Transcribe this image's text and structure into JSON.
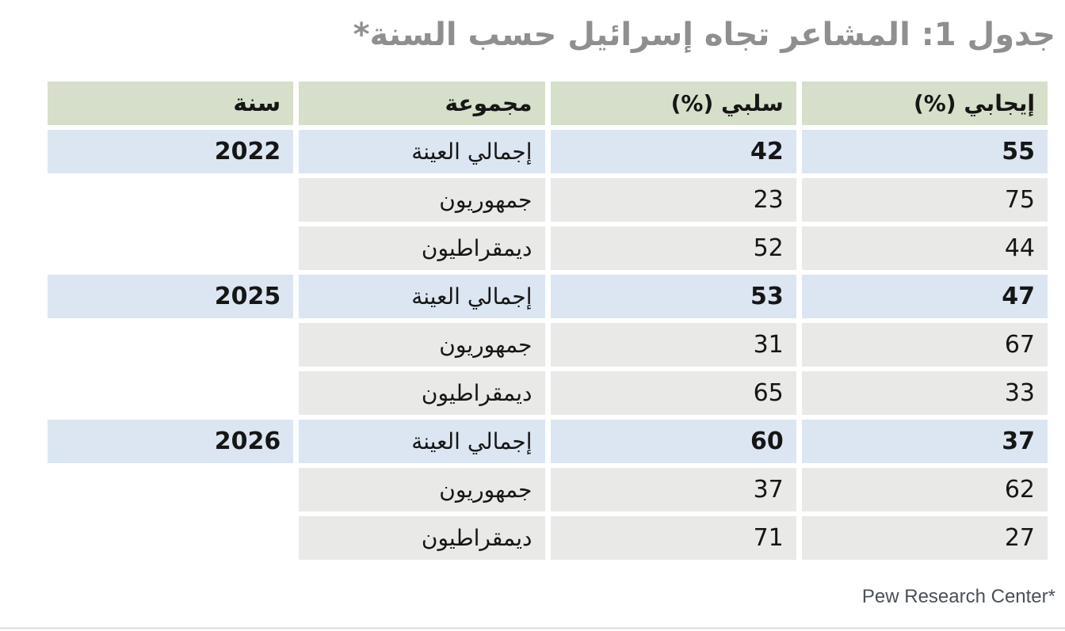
{
  "title": "جدول 1: المشاعر تجاه إسرائيل حسب السنة*",
  "source": "Pew Research Center*",
  "colors": {
    "header_bg": "#d6dfc9",
    "highlight_row_bg": "#dbe6f2",
    "row_bg": "#e9e9e7",
    "title_color": "#8f8f8f",
    "cell_text_color": "#161616",
    "source_color": "#4a5057"
  },
  "chart_data": {
    "type": "table",
    "title": "جدول 1: المشاعر تجاه إسرائيل حسب السنة*",
    "layout": "rtl",
    "columns_right_to_left": [
      "إيجابي (%)",
      "سلبي (%)",
      "مجموعة",
      "سنة"
    ],
    "columns": [
      "إيجابي (%)",
      "سلبي (%)",
      "مجموعة",
      "سنة"
    ],
    "rows": [
      {
        "year": "2022",
        "group": "إجمالي العينة",
        "negative": "42",
        "positive": "55",
        "highlight": true
      },
      {
        "year": "",
        "group": "جمهوريون",
        "negative": "23",
        "positive": "75",
        "highlight": false
      },
      {
        "year": "",
        "group": "ديمقراطيون",
        "negative": "52",
        "positive": "44",
        "highlight": false
      },
      {
        "year": "2025",
        "group": "إجمالي العينة",
        "negative": "53",
        "positive": "47",
        "highlight": true
      },
      {
        "year": "",
        "group": "جمهوريون",
        "negative": "31",
        "positive": "67",
        "highlight": false
      },
      {
        "year": "",
        "group": "ديمقراطيون",
        "negative": "65",
        "positive": "33",
        "highlight": false
      },
      {
        "year": "2026",
        "group": "إجمالي العينة",
        "negative": "60",
        "positive": "37",
        "highlight": true
      },
      {
        "year": "",
        "group": "جمهوريون",
        "negative": "37",
        "positive": "62",
        "highlight": false
      },
      {
        "year": "",
        "group": "ديمقراطيون",
        "negative": "71",
        "positive": "27",
        "highlight": false
      }
    ]
  }
}
